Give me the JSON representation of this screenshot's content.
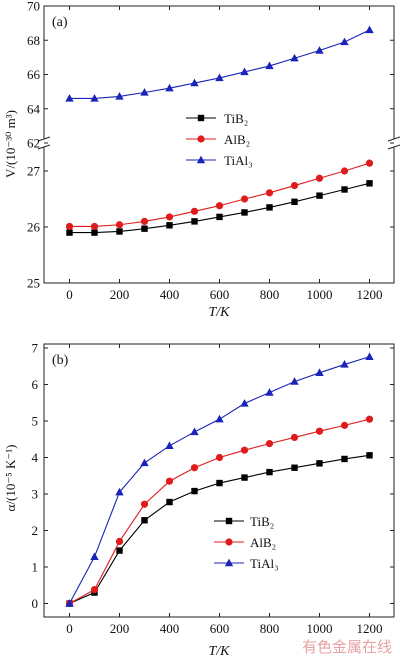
{
  "panels": [
    {
      "id": "a",
      "panel_label": "(a)",
      "xlabel": "T/K",
      "ylabel": "V/(10⁻³⁰ m³)",
      "upper_ylim": [
        62,
        70
      ],
      "upper_ticks": [
        "62",
        "64",
        "66",
        "68",
        "70"
      ],
      "lower_ylim": [
        25,
        27.5
      ],
      "lower_ticks": [
        "25",
        "26",
        "27"
      ],
      "x_ticks": [
        "0",
        "200",
        "400",
        "600",
        "800",
        "1000",
        "1200"
      ],
      "legend": [
        "TiB₂",
        "AlB₂",
        "TiAl₃"
      ]
    },
    {
      "id": "b",
      "panel_label": "(b)",
      "xlabel": "T/K",
      "ylabel": "α/(10⁻⁵ K⁻¹)",
      "y_ticks": [
        "0",
        "1",
        "2",
        "3",
        "4",
        "5",
        "6",
        "7"
      ],
      "x_ticks": [
        "0",
        "200",
        "400",
        "600",
        "800",
        "1000",
        "1200"
      ],
      "legend": [
        "TiB₂",
        "AlB₂",
        "TiAl₃"
      ]
    }
  ],
  "watermark": "有色金属在线",
  "colors": {
    "TiB2": "#000000",
    "AlB2": "#e01b1b",
    "TiAl3": "#1a24b8"
  },
  "chart_data": [
    {
      "type": "line",
      "title": "(a)",
      "xlabel": "T/K",
      "ylabel": "V/(10⁻³⁰ m³)",
      "xlim": [
        -100,
        1300
      ],
      "ylim": [
        25,
        70
      ],
      "axis_break": {
        "lower": [
          25,
          27.5
        ],
        "upper": [
          62,
          70
        ]
      },
      "x": [
        0,
        100,
        200,
        300,
        400,
        500,
        600,
        700,
        800,
        900,
        1000,
        1100,
        1200
      ],
      "series": [
        {
          "name": "TiB₂",
          "marker": "square",
          "color": "#000000",
          "values": [
            25.9,
            25.9,
            25.92,
            25.97,
            26.03,
            26.1,
            26.18,
            26.26,
            26.35,
            26.45,
            26.56,
            26.67,
            26.78
          ]
        },
        {
          "name": "AlB₂",
          "marker": "circle",
          "color": "#e01b1b",
          "values": [
            26.01,
            26.01,
            26.04,
            26.1,
            26.18,
            26.28,
            26.38,
            26.5,
            26.61,
            26.74,
            26.87,
            27.0,
            27.14
          ]
        },
        {
          "name": "TiAl₃",
          "marker": "triangle",
          "color": "#1a24b8",
          "values": [
            64.6,
            64.6,
            64.72,
            64.95,
            65.2,
            65.5,
            65.8,
            66.15,
            66.5,
            66.95,
            67.4,
            67.9,
            68.6
          ]
        }
      ],
      "legend_position": "center-left"
    },
    {
      "type": "line",
      "title": "(b)",
      "xlabel": "T/K",
      "ylabel": "α/(10⁻⁵ K⁻¹)",
      "xlim": [
        -100,
        1300
      ],
      "ylim": [
        -0.3,
        7
      ],
      "x": [
        0,
        100,
        200,
        300,
        400,
        500,
        600,
        700,
        800,
        900,
        1000,
        1100,
        1200
      ],
      "series": [
        {
          "name": "TiB₂",
          "marker": "square",
          "color": "#000000",
          "values": [
            0,
            0.3,
            1.45,
            2.28,
            2.78,
            3.08,
            3.3,
            3.45,
            3.6,
            3.72,
            3.84,
            3.96,
            4.06
          ]
        },
        {
          "name": "AlB₂",
          "marker": "circle",
          "color": "#e01b1b",
          "values": [
            0,
            0.38,
            1.7,
            2.72,
            3.35,
            3.72,
            4.0,
            4.2,
            4.38,
            4.55,
            4.72,
            4.88,
            5.05
          ]
        },
        {
          "name": "TiAl₃",
          "marker": "triangle",
          "color": "#1a24b8",
          "values": [
            0,
            1.28,
            3.05,
            3.85,
            4.32,
            4.7,
            5.05,
            5.48,
            5.78,
            6.08,
            6.32,
            6.55,
            6.76
          ]
        }
      ],
      "legend_position": "bottom-right"
    }
  ]
}
